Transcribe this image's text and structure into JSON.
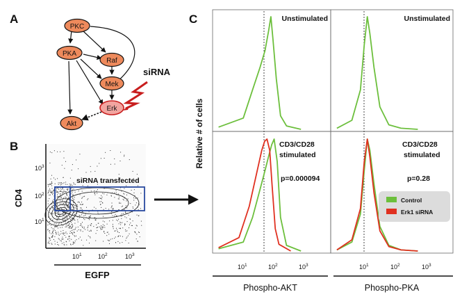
{
  "panels": {
    "a": "A",
    "b": "B",
    "c": "C"
  },
  "panel_a": {
    "nodes": {
      "pkc": "PKC",
      "pka": "PKA",
      "raf": "Raf",
      "mek": "Mek",
      "erk": "Erk",
      "akt": "Akt"
    },
    "sirna_label": "siRNA",
    "colors": {
      "node_fill": "#ee8a5c",
      "erk_fill": "#f2a5a0",
      "lightning": "#c81e1e"
    }
  },
  "panel_b": {
    "gate_label": "siRNA transfected",
    "ylabel": "CD4",
    "xlabel": "EGFP",
    "y_ticks": [
      "10",
      "10",
      "10"
    ],
    "y_tick_exps": [
      "3",
      "2",
      "1"
    ],
    "x_ticks": [
      "10",
      "10",
      "10"
    ],
    "x_tick_exps": [
      "1",
      "2",
      "3"
    ],
    "gate_color": "#2a4aa0"
  },
  "panel_c": {
    "ylabel": "Relative # of cells",
    "top_left_label": "Unstimulated",
    "top_right_label": "Unstimulated",
    "bottom_left_label_1": "CD3/CD28",
    "bottom_left_label_2": "stimulated",
    "bottom_right_label_1": "CD3/CD28",
    "bottom_right_label_2": "stimulated",
    "p_left": "p=0.000094",
    "p_right": "p=0.28",
    "x_ticks": [
      "10",
      "10",
      "10"
    ],
    "x_tick_exps": [
      "1",
      "2",
      "3"
    ],
    "xlabel_left": "Phospho-AKT",
    "xlabel_right": "Phospho-PKA",
    "legend": [
      {
        "label": "Control",
        "color": "#6cbf3c"
      },
      {
        "label": "Erk1 siRNA",
        "color": "#e03020"
      }
    ]
  },
  "chart_data": [
    {
      "type": "area",
      "title": "Unstimulated",
      "xlabel": "Phospho-AKT",
      "ylabel": "Relative # of cells",
      "x_scale": "log",
      "xlim": [
        1,
        3000
      ],
      "series": [
        {
          "name": "Control",
          "x": [
            1.5,
            8,
            15,
            25,
            35,
            45,
            52,
            60,
            75,
            100,
            150,
            400
          ],
          "values": [
            2,
            10,
            35,
            55,
            70,
            88,
            100,
            80,
            45,
            12,
            3,
            0
          ]
        }
      ]
    },
    {
      "type": "area",
      "title": "Unstimulated",
      "xlabel": "Phospho-PKA",
      "ylabel": "Relative # of cells",
      "x_scale": "log",
      "xlim": [
        1,
        3000
      ],
      "series": [
        {
          "name": "Control",
          "x": [
            1.5,
            4,
            7,
            9,
            11,
            13,
            17,
            25,
            45,
            100,
            300
          ],
          "values": [
            1,
            8,
            35,
            75,
            100,
            85,
            55,
            20,
            4,
            1,
            0
          ]
        }
      ]
    },
    {
      "type": "area",
      "title": "CD3/CD28 stimulated",
      "xlabel": "Phospho-AKT",
      "ylabel": "Relative # of cells",
      "x_scale": "log",
      "xlim": [
        1,
        3000
      ],
      "annotations": [
        "p=0.000094"
      ],
      "series": [
        {
          "name": "Control",
          "x": [
            1.5,
            8,
            15,
            25,
            35,
            45,
            55,
            65,
            80,
            100,
            150,
            400
          ],
          "values": [
            2,
            8,
            30,
            55,
            72,
            85,
            95,
            100,
            80,
            30,
            5,
            0
          ]
        },
        {
          "name": "Erk1 siRNA",
          "x": [
            1.5,
            6,
            12,
            20,
            28,
            34,
            40,
            48,
            56,
            70,
            90,
            200
          ],
          "values": [
            3,
            12,
            40,
            70,
            90,
            98,
            100,
            90,
            60,
            20,
            6,
            0
          ]
        }
      ]
    },
    {
      "type": "area",
      "title": "CD3/CD28 stimulated",
      "xlabel": "Phospho-PKA",
      "ylabel": "Relative # of cells",
      "x_scale": "log",
      "xlim": [
        1,
        3000
      ],
      "annotations": [
        "p=0.28"
      ],
      "series": [
        {
          "name": "Control",
          "x": [
            1.5,
            4,
            7,
            9,
            11,
            13,
            17,
            25,
            45,
            100,
            300
          ],
          "values": [
            1,
            8,
            33,
            72,
            100,
            90,
            60,
            22,
            5,
            1,
            0
          ]
        },
        {
          "name": "Erk1 siRNA",
          "x": [
            1.5,
            4,
            7,
            9,
            11,
            13,
            17,
            25,
            45,
            100,
            300
          ],
          "values": [
            1,
            10,
            38,
            80,
            100,
            84,
            52,
            18,
            4,
            1,
            0
          ]
        }
      ]
    }
  ]
}
